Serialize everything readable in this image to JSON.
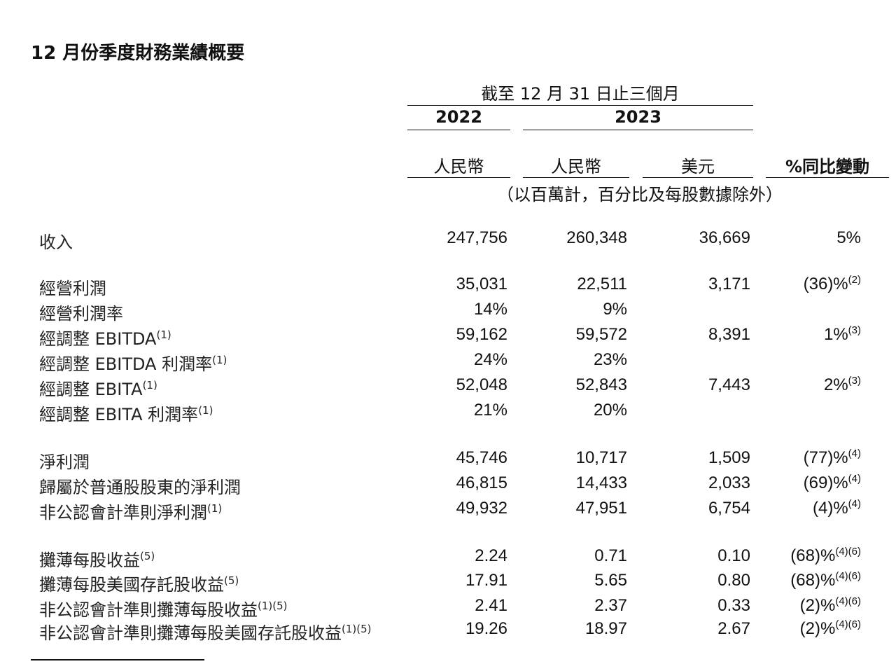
{
  "title": "12 月份季度財務業績概要",
  "header": {
    "period": "截至 12 月 31 日止三個月",
    "year_2022": "2022",
    "year_2023": "2023",
    "col_rmb_2022": "人民幣",
    "col_rmb_2023": "人民幣",
    "col_usd": "美元",
    "col_yoy": "%同比變動",
    "unit_note": "（以百萬計，百分比及每股數據除外）"
  },
  "rows": [
    {
      "label": "收入",
      "label_sup": "",
      "v2022": "247,756",
      "v2023_rmb": "260,348",
      "v2023_usd": "36,669",
      "yoy": "5%",
      "yoy_sup": ""
    },
    {
      "label": "經營利潤",
      "label_sup": "",
      "v2022": "35,031",
      "v2023_rmb": "22,511",
      "v2023_usd": "3,171",
      "yoy": "(36)%",
      "yoy_sup": "(2)"
    },
    {
      "label": "經營利潤率",
      "label_sup": "",
      "v2022": "14%",
      "v2023_rmb": "9%",
      "v2023_usd": "",
      "yoy": "",
      "yoy_sup": ""
    },
    {
      "label": "經調整 EBITDA",
      "label_sup": "(1)",
      "v2022": "59,162",
      "v2023_rmb": "59,572",
      "v2023_usd": "8,391",
      "yoy": "1%",
      "yoy_sup": "(3)"
    },
    {
      "label": "經調整 EBITDA 利潤率",
      "label_sup": "(1)",
      "v2022": "24%",
      "v2023_rmb": "23%",
      "v2023_usd": "",
      "yoy": "",
      "yoy_sup": ""
    },
    {
      "label": "經調整 EBITA",
      "label_sup": "(1)",
      "v2022": "52,048",
      "v2023_rmb": "52,843",
      "v2023_usd": "7,443",
      "yoy": "2%",
      "yoy_sup": "(3)"
    },
    {
      "label": "經調整 EBITA 利潤率",
      "label_sup": "(1)",
      "v2022": "21%",
      "v2023_rmb": "20%",
      "v2023_usd": "",
      "yoy": "",
      "yoy_sup": ""
    },
    {
      "label": "淨利潤",
      "label_sup": "",
      "v2022": "45,746",
      "v2023_rmb": "10,717",
      "v2023_usd": "1,509",
      "yoy": "(77)%",
      "yoy_sup": "(4)"
    },
    {
      "label": "歸屬於普通股股東的淨利潤",
      "label_sup": "",
      "v2022": "46,815",
      "v2023_rmb": "14,433",
      "v2023_usd": "2,033",
      "yoy": "(69)%",
      "yoy_sup": "(4)"
    },
    {
      "label": "非公認會計準則淨利潤",
      "label_sup": "(1)",
      "v2022": "49,932",
      "v2023_rmb": "47,951",
      "v2023_usd": "6,754",
      "yoy": "(4)%",
      "yoy_sup": "(4)"
    },
    {
      "label": "攤薄每股收益",
      "label_sup": "(5)",
      "v2022": "2.24",
      "v2023_rmb": "0.71",
      "v2023_usd": "0.10",
      "yoy": "(68)%",
      "yoy_sup": "(4)(6)"
    },
    {
      "label": "攤薄每股美國存託股收益",
      "label_sup": "(5)",
      "v2022": "17.91",
      "v2023_rmb": "5.65",
      "v2023_usd": "0.80",
      "yoy": "(68)%",
      "yoy_sup": "(4)(6)"
    },
    {
      "label": "非公認會計準則攤薄每股收益",
      "label_sup": "(1)(5)",
      "v2022": "2.41",
      "v2023_rmb": "2.37",
      "v2023_usd": "0.33",
      "yoy": "(2)%",
      "yoy_sup": "(4)(6)"
    },
    {
      "label": "非公認會計準則攤薄每股美國存託股收益",
      "label_sup": "(1)(5)",
      "v2022": "19.26",
      "v2023_rmb": "18.97",
      "v2023_usd": "2.67",
      "yoy": "(2)%",
      "yoy_sup": "(4)(6)"
    }
  ]
}
